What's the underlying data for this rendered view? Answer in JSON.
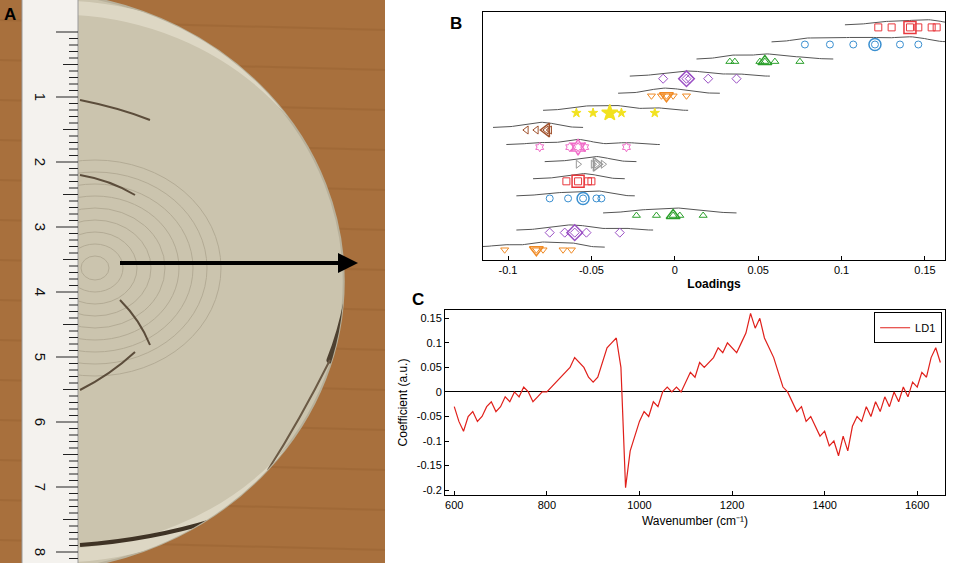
{
  "chart_data": [
    {
      "type": "image",
      "panel": "A",
      "ruler_labels": [
        1,
        2,
        3,
        4,
        5,
        6,
        7,
        8
      ]
    },
    {
      "type": "scatter",
      "panel": "B",
      "x_label": "Loadings",
      "xlim": [
        -0.115,
        0.162
      ],
      "xticks": [
        -0.1,
        -0.05,
        0,
        0.05,
        0.1,
        0.15
      ],
      "tick_labels": "x",
      "series": [
        {
          "color": "#e8383d",
          "marker": "square",
          "values": [
            0.122,
            0.13,
            0.141,
            0.146,
            0.154,
            0.157
          ],
          "mean": 0.141
        },
        {
          "color": "#3a8fd0",
          "marker": "circle",
          "values": [
            0.078,
            0.093,
            0.107,
            0.12,
            0.135,
            0.146
          ],
          "mean": 0.12
        },
        {
          "color": "#2ca02c",
          "marker": "triangle-up",
          "values": [
            0.033,
            0.036,
            0.051,
            0.054,
            0.06,
            0.075
          ],
          "mean": 0.054
        },
        {
          "color": "#9a4fc4",
          "marker": "diamond",
          "values": [
            -0.007,
            0.007,
            0.009,
            0.02,
            0.037
          ],
          "mean": 0.007
        },
        {
          "color": "#f08a24",
          "marker": "triangle-down",
          "values": [
            -0.014,
            -0.008,
            -0.005,
            -0.001,
            0.007
          ],
          "mean": -0.005
        },
        {
          "color": "#f2e21e",
          "marker": "star",
          "values": [
            -0.059,
            -0.049,
            -0.039,
            -0.032,
            -0.012
          ],
          "mean": -0.039
        },
        {
          "color": "#a0522d",
          "marker": "triangle-left",
          "values": [
            -0.089,
            -0.083,
            -0.077,
            -0.075
          ],
          "mean": -0.077
        },
        {
          "color": "#f06bc8",
          "marker": "hexagram",
          "values": [
            -0.081,
            -0.063,
            -0.058,
            -0.054,
            -0.029
          ],
          "mean": -0.058
        },
        {
          "color": "#999999",
          "marker": "triangle-right",
          "values": [
            -0.058,
            -0.049,
            -0.047,
            -0.043
          ],
          "mean": -0.047
        },
        {
          "color": "#e8383d",
          "marker": "square",
          "values": [
            -0.065,
            -0.058,
            -0.052,
            -0.05
          ],
          "mean": -0.058
        },
        {
          "color": "#3a8fd0",
          "marker": "circle",
          "values": [
            -0.075,
            -0.064,
            -0.055,
            -0.047,
            -0.044
          ],
          "mean": -0.055
        },
        {
          "color": "#2ca02c",
          "marker": "triangle-up",
          "values": [
            -0.023,
            -0.011,
            -0.001,
            0.003,
            0.017
          ],
          "mean": -0.001
        },
        {
          "color": "#9a4fc4",
          "marker": "diamond",
          "values": [
            -0.075,
            -0.066,
            -0.06,
            -0.053,
            -0.033
          ],
          "mean": -0.06
        },
        {
          "color": "#f08a24",
          "marker": "triangle-down",
          "values": [
            -0.102,
            -0.083,
            -0.079,
            -0.067,
            -0.062
          ],
          "mean": -0.083
        }
      ]
    },
    {
      "type": "line",
      "panel": "C",
      "x_label": "Wavenumber (cm⁻¹)",
      "y_label": "Coefficient (a.u.)",
      "xlim": [
        580,
        1660
      ],
      "xticks": [
        600,
        800,
        1000,
        1200,
        1400,
        1600
      ],
      "ylim": [
        -0.21,
        0.167
      ],
      "yticks": [
        -0.2,
        -0.15,
        -0.1,
        -0.05,
        0,
        0.05,
        0.1,
        0.15
      ],
      "legend": "upper right",
      "x": [
        600,
        610,
        620,
        630,
        640,
        650,
        660,
        670,
        680,
        690,
        700,
        710,
        720,
        730,
        740,
        750,
        760,
        770,
        780,
        790,
        800,
        810,
        820,
        830,
        840,
        850,
        860,
        870,
        880,
        890,
        900,
        910,
        920,
        930,
        940,
        950,
        960,
        970,
        980,
        990,
        1000,
        1010,
        1020,
        1030,
        1040,
        1050,
        1060,
        1070,
        1080,
        1090,
        1100,
        1110,
        1120,
        1130,
        1140,
        1150,
        1160,
        1170,
        1180,
        1190,
        1200,
        1210,
        1220,
        1230,
        1240,
        1250,
        1260,
        1270,
        1280,
        1290,
        1300,
        1310,
        1320,
        1330,
        1340,
        1350,
        1360,
        1370,
        1380,
        1390,
        1400,
        1410,
        1420,
        1430,
        1440,
        1450,
        1460,
        1470,
        1480,
        1490,
        1500,
        1510,
        1520,
        1530,
        1540,
        1550,
        1560,
        1570,
        1580,
        1590,
        1600,
        1610,
        1620,
        1630,
        1640,
        1650
      ],
      "series": [
        {
          "name": "LD1",
          "color": "#e0201b",
          "values": [
            -0.03,
            -0.06,
            -0.08,
            -0.05,
            -0.04,
            -0.06,
            -0.05,
            -0.03,
            -0.02,
            -0.04,
            -0.03,
            -0.01,
            -0.02,
            0.0,
            -0.01,
            0.01,
            0.0,
            -0.02,
            -0.01,
            0.0,
            0.0,
            0.01,
            0.02,
            0.03,
            0.04,
            0.05,
            0.07,
            0.06,
            0.05,
            0.03,
            0.02,
            0.03,
            0.06,
            0.09,
            0.1,
            0.11,
            0.05,
            -0.195,
            -0.12,
            -0.09,
            -0.06,
            -0.04,
            -0.05,
            -0.02,
            -0.03,
            0.0,
            0.01,
            0.0,
            0.01,
            0.0,
            0.02,
            0.04,
            0.03,
            0.06,
            0.05,
            0.06,
            0.07,
            0.09,
            0.08,
            0.1,
            0.09,
            0.08,
            0.1,
            0.12,
            0.16,
            0.13,
            0.15,
            0.11,
            0.09,
            0.07,
            0.04,
            0.01,
            0.0,
            -0.02,
            -0.04,
            -0.03,
            -0.06,
            -0.05,
            -0.07,
            -0.09,
            -0.08,
            -0.11,
            -0.1,
            -0.13,
            -0.09,
            -0.12,
            -0.07,
            -0.05,
            -0.06,
            -0.03,
            -0.05,
            -0.02,
            -0.04,
            -0.01,
            -0.03,
            0.0,
            -0.02,
            0.01,
            -0.01,
            0.02,
            0.01,
            0.04,
            0.03,
            0.07,
            0.09,
            0.06
          ]
        }
      ]
    }
  ]
}
